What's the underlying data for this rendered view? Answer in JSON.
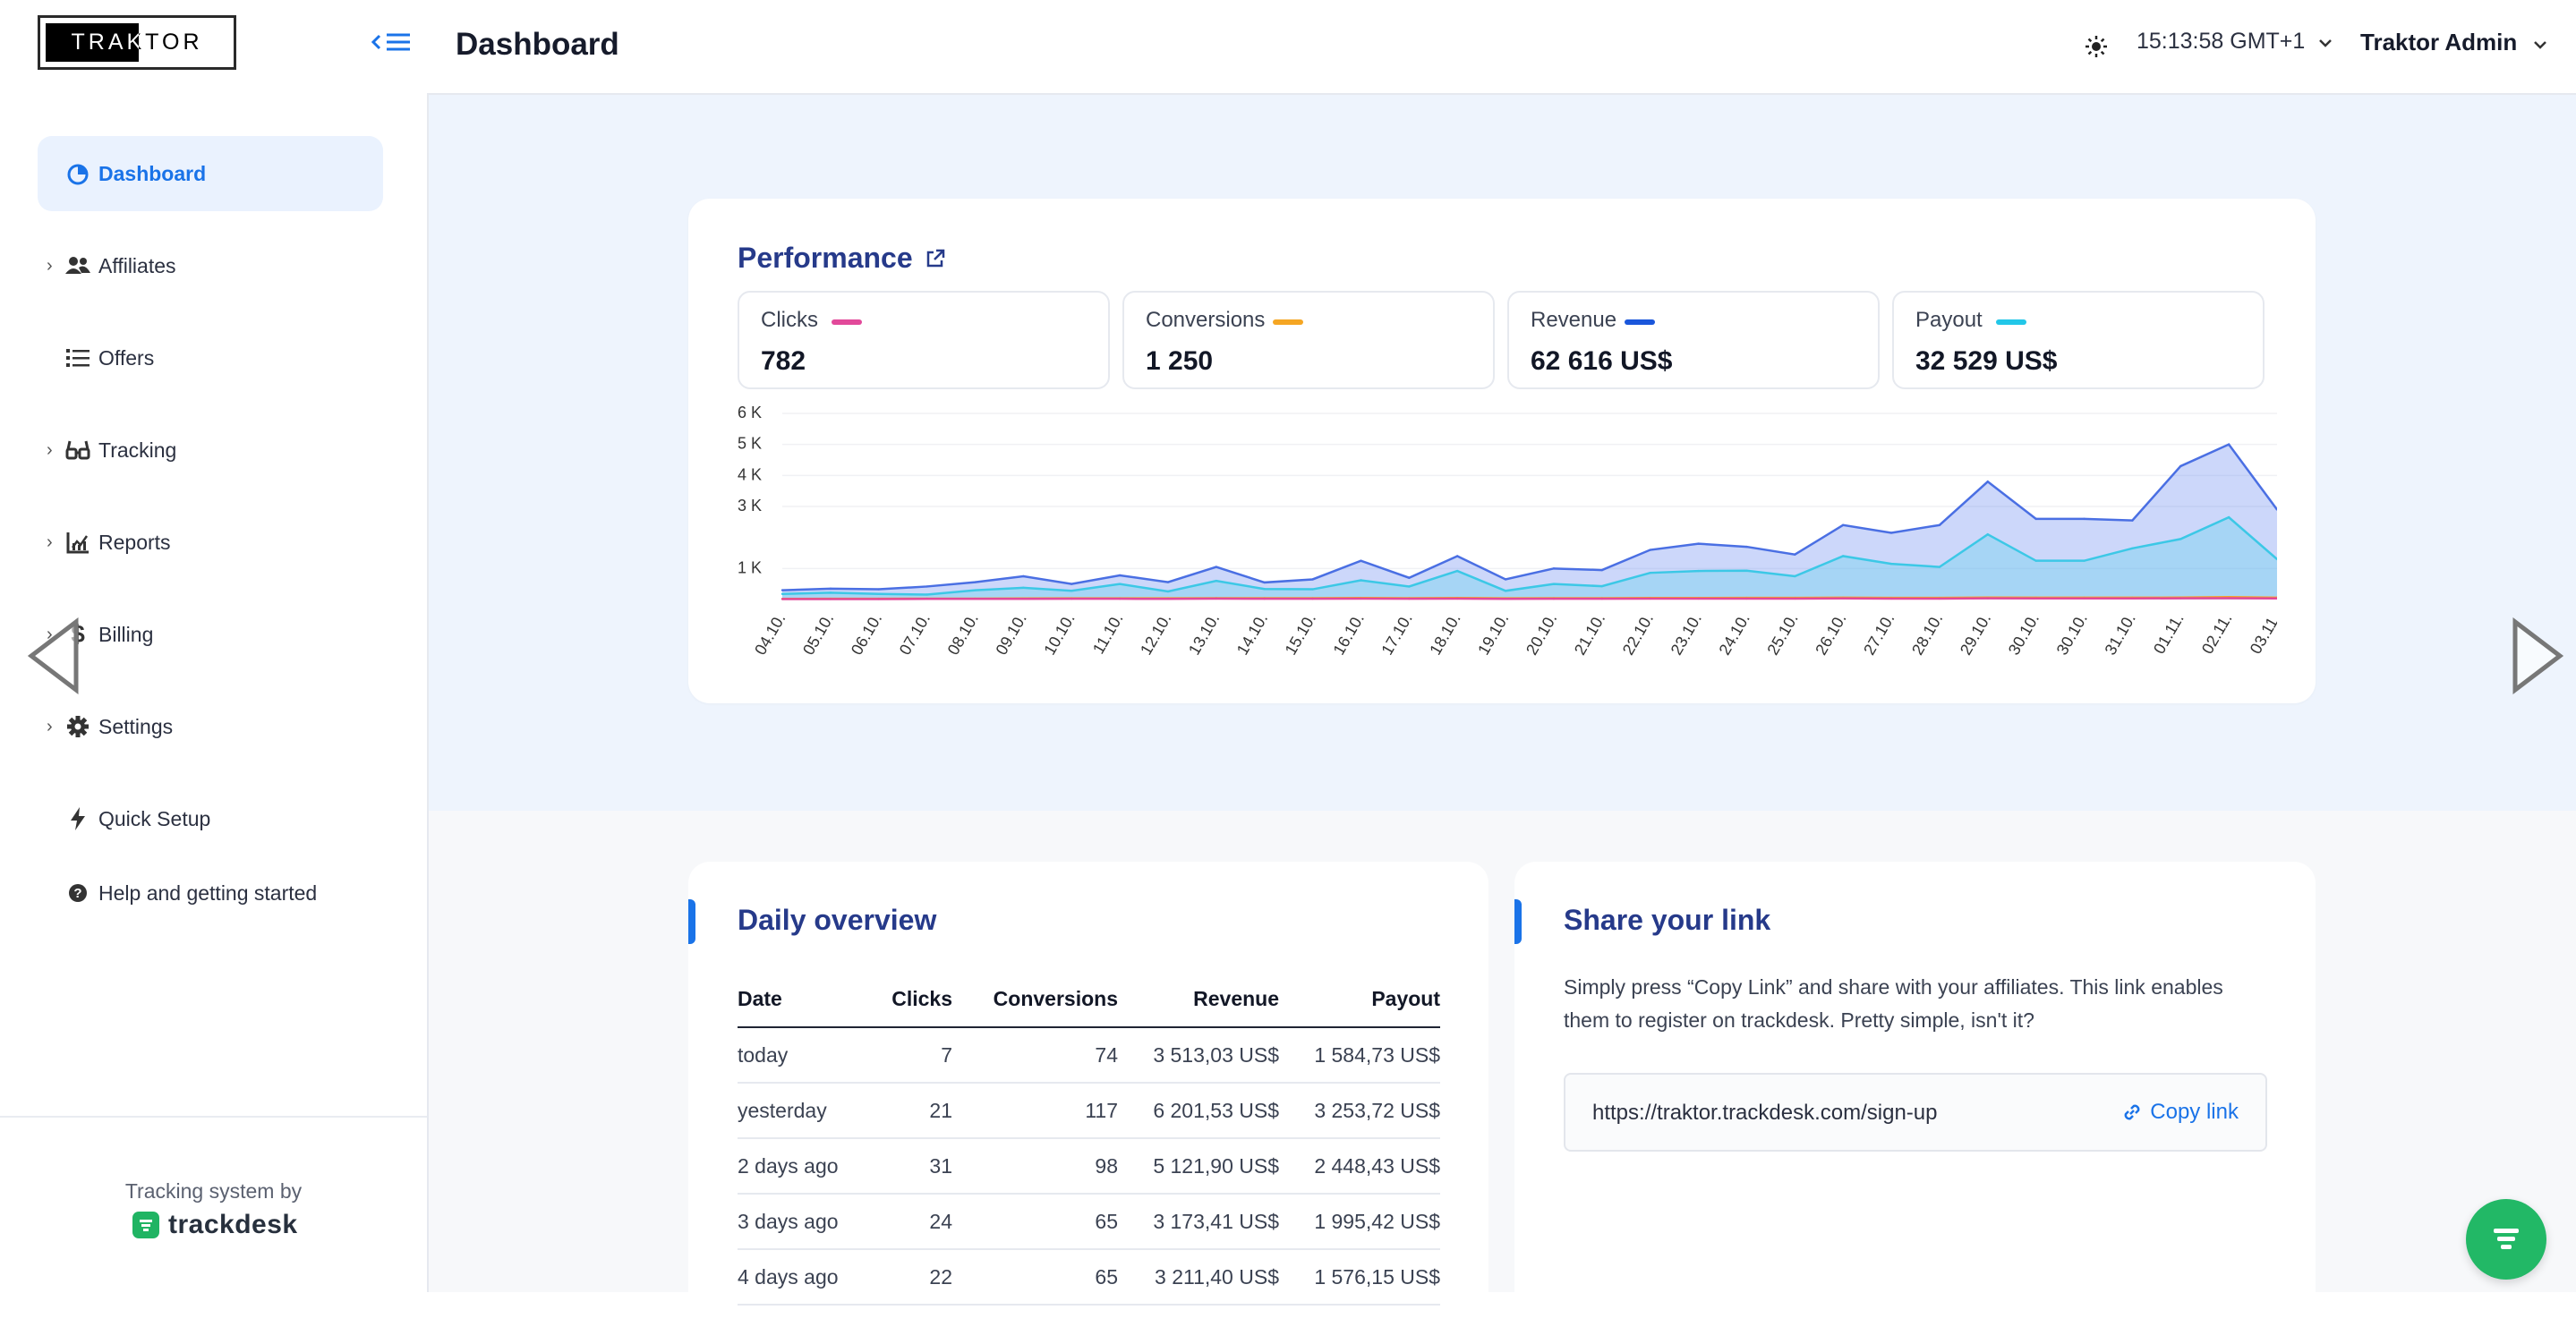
{
  "app": {
    "logo_text": "TRAKTOR"
  },
  "sidebar": {
    "items": [
      {
        "label": "Dashboard",
        "icon": "chart-pie-icon",
        "active": true,
        "expandable": false
      },
      {
        "label": "Affiliates",
        "icon": "users-icon",
        "active": false,
        "expandable": true
      },
      {
        "label": "Offers",
        "icon": "list-icon",
        "active": false,
        "expandable": false
      },
      {
        "label": "Tracking",
        "icon": "glasses-icon",
        "active": false,
        "expandable": true
      },
      {
        "label": "Reports",
        "icon": "chart-bar-icon",
        "active": false,
        "expandable": true
      },
      {
        "label": "Billing",
        "icon": "dollar-icon",
        "active": false,
        "expandable": true
      },
      {
        "label": "Settings",
        "icon": "gear-icon",
        "active": false,
        "expandable": true
      },
      {
        "label": "Quick Setup",
        "icon": "bolt-icon",
        "active": false,
        "expandable": false
      },
      {
        "label": "Help and getting started",
        "icon": "question-icon",
        "active": false,
        "expandable": false
      }
    ],
    "powered_by": "Tracking system by",
    "brand": "trackdesk"
  },
  "header": {
    "title": "Dashboard",
    "clock": "15:13:58 GMT+1",
    "user": "Traktor Admin"
  },
  "performance": {
    "title": "Performance",
    "kpis": [
      {
        "label": "Clicks",
        "value": "782",
        "color": "#e2499a"
      },
      {
        "label": "Conversions",
        "value": "1 250",
        "color": "#f5a623"
      },
      {
        "label": "Revenue",
        "value": "62 616 US$",
        "color": "#1a56db"
      },
      {
        "label": "Payout",
        "value": "32 529 US$",
        "color": "#22c7e8"
      }
    ]
  },
  "chart_data": {
    "type": "area",
    "y_tick_labels": [
      "6 K",
      "5 K",
      "4 K",
      "3 K",
      "1 K"
    ],
    "y_tick_values": [
      6000,
      5000,
      4000,
      3000,
      1000
    ],
    "ylim": [
      0,
      6000
    ],
    "categories": [
      "04.10.",
      "05.10.",
      "06.10.",
      "07.10.",
      "08.10.",
      "09.10.",
      "10.10.",
      "11.10.",
      "12.10.",
      "13.10.",
      "14.10.",
      "15.10.",
      "16.10.",
      "17.10.",
      "18.10.",
      "19.10.",
      "20.10.",
      "21.10.",
      "22.10.",
      "23.10.",
      "24.10.",
      "25.10.",
      "26.10.",
      "27.10.",
      "28.10.",
      "29.10.",
      "30.10.",
      "30.10.",
      "31.10.",
      "01.11.",
      "02.11.",
      "03.11."
    ],
    "series": [
      {
        "name": "Revenue",
        "color": "#4a6fe3",
        "values": [
          300,
          350,
          330,
          420,
          560,
          750,
          500,
          780,
          560,
          1050,
          550,
          650,
          1250,
          700,
          1400,
          650,
          1000,
          950,
          1600,
          1800,
          1700,
          1450,
          2400,
          2150,
          2400,
          3800,
          2600,
          2600,
          2550,
          4300,
          5000,
          2900
        ]
      },
      {
        "name": "Payout",
        "color": "#3cc8e6",
        "values": [
          180,
          220,
          180,
          160,
          300,
          380,
          280,
          500,
          260,
          600,
          340,
          330,
          620,
          420,
          920,
          280,
          500,
          430,
          860,
          920,
          930,
          750,
          1400,
          1150,
          1050,
          2100,
          1250,
          1250,
          1650,
          1950,
          2650,
          1300
        ]
      },
      {
        "name": "Conversions",
        "color": "#f5a623",
        "values": [
          20,
          25,
          25,
          30,
          30,
          35,
          40,
          40,
          40,
          45,
          45,
          45,
          50,
          45,
          50,
          40,
          45,
          45,
          50,
          50,
          55,
          55,
          60,
          55,
          55,
          65,
          60,
          60,
          60,
          65,
          80,
          60
        ]
      },
      {
        "name": "Clicks",
        "color": "#e2499a",
        "values": [
          15,
          15,
          15,
          20,
          20,
          20,
          25,
          25,
          20,
          30,
          25,
          25,
          30,
          25,
          30,
          20,
          25,
          25,
          30,
          30,
          30,
          30,
          35,
          30,
          30,
          40,
          35,
          35,
          35,
          40,
          45,
          35
        ]
      }
    ]
  },
  "daily": {
    "title": "Daily overview",
    "columns": [
      "Date",
      "Clicks",
      "Conversions",
      "Revenue",
      "Payout"
    ],
    "rows": [
      [
        "today",
        "7",
        "74",
        "3 513,03 US$",
        "1 584,73 US$"
      ],
      [
        "yesterday",
        "21",
        "117",
        "6 201,53 US$",
        "3 253,72 US$"
      ],
      [
        "2 days ago",
        "31",
        "98",
        "5 121,90 US$",
        "2 448,43 US$"
      ],
      [
        "3 days ago",
        "24",
        "65",
        "3 173,41 US$",
        "1 995,42 US$"
      ],
      [
        "4 days ago",
        "22",
        "65",
        "3 211,40 US$",
        "1 576,15 US$"
      ]
    ]
  },
  "share": {
    "title": "Share your link",
    "text": "Simply press “Copy Link” and share with your affiliates. This link enables them to register on trackdesk. Pretty simple, isn't it?",
    "url": "https://traktor.trackdesk.com/sign-up",
    "copy_label": "Copy link"
  }
}
